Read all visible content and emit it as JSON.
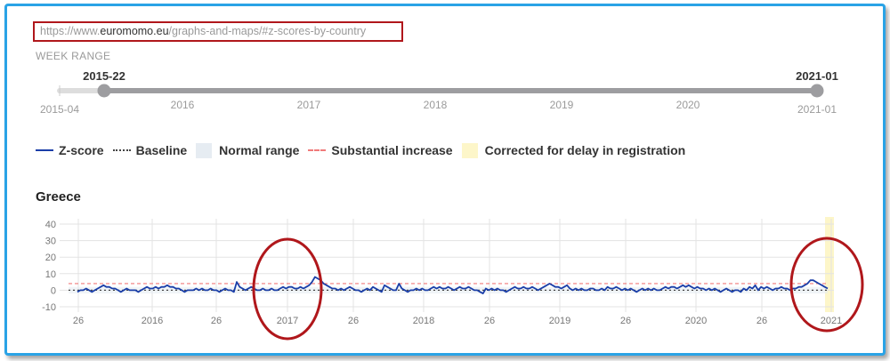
{
  "url": {
    "prefix": "https://www.",
    "domain": "euromomo.eu",
    "path": "/graphs-and-maps/#z-scores-by-country"
  },
  "week_range": {
    "label": "WEEK RANGE",
    "start_selected": "2015-22",
    "end_selected": "2021-01",
    "min_label": "2015-04",
    "max_label": "2021-01",
    "year_ticks": [
      "2016",
      "2017",
      "2018",
      "2019",
      "2020"
    ]
  },
  "legend": [
    {
      "label": "Z-score",
      "style": "solid",
      "color": "#1a3ea8"
    },
    {
      "label": "Baseline",
      "style": "dotted",
      "color": "#444444"
    },
    {
      "label": "Normal range",
      "style": "swatch",
      "color": "#e6ecf2"
    },
    {
      "label": "Substantial increase",
      "style": "dashed",
      "color": "#f07a7a"
    },
    {
      "label": "Corrected for delay in registration",
      "style": "swatch",
      "color": "#fdf6c9"
    }
  ],
  "colors": {
    "zscore": "#1a3ea8",
    "baseline": "#444444",
    "normal_range": "#e6ecf2",
    "substantial_increase": "#f07a7a",
    "correction": "#fdf6c9",
    "highlight": "#b0171b",
    "frame": "#2aa3e6"
  },
  "chart_data": {
    "type": "line",
    "title": "Greece",
    "x_unit": "ISO week (2015-22 to 2021-01)",
    "ylim": [
      -10,
      40
    ],
    "yticks": [
      "40",
      "30",
      "20",
      "10",
      "0",
      "-10"
    ],
    "xtick_labels": [
      "26",
      "2016",
      "26",
      "2017",
      "26",
      "2018",
      "26",
      "2019",
      "26",
      "2020",
      "26",
      "2021"
    ],
    "grid": true,
    "baseline": 0,
    "substantial_increase": 4,
    "normal_range": [
      -2,
      2
    ],
    "corrected_weeks_start": "2020-50",
    "series": [
      {
        "name": "Z-score",
        "x_start": "2015-22",
        "values": [
          -1,
          0,
          0,
          1,
          0,
          -1,
          0,
          1,
          2,
          3,
          2,
          2,
          1,
          1,
          0,
          -1,
          0,
          1,
          0,
          0,
          0,
          -1,
          0,
          1,
          2,
          1,
          1,
          2,
          1,
          2,
          2,
          3,
          2,
          2,
          1,
          1,
          0,
          -1,
          0,
          0,
          0,
          1,
          0,
          1,
          0,
          0,
          1,
          0,
          0,
          -1,
          0,
          1,
          0,
          0,
          -1,
          5,
          2,
          1,
          0,
          1,
          2,
          1,
          0,
          0,
          1,
          0,
          0,
          1,
          0,
          0,
          1,
          2,
          1,
          2,
          2,
          1,
          1,
          2,
          1,
          2,
          3,
          5,
          8,
          7,
          6,
          4,
          3,
          2,
          1,
          1,
          0,
          1,
          0,
          1,
          2,
          1,
          0,
          0,
          -1,
          0,
          1,
          0,
          2,
          1,
          0,
          -1,
          3,
          2,
          1,
          0,
          0,
          4,
          1,
          0,
          -1,
          0,
          0,
          1,
          0,
          1,
          0,
          0,
          1,
          2,
          1,
          2,
          1,
          1,
          2,
          1,
          0,
          1,
          2,
          1,
          1,
          2,
          1,
          0,
          0,
          -1,
          -2,
          1,
          0,
          1,
          0,
          1,
          0,
          0,
          -1,
          0,
          1,
          2,
          1,
          1,
          2,
          1,
          1,
          2,
          1,
          0,
          1,
          2,
          3,
          4,
          3,
          2,
          2,
          1,
          2,
          3,
          1,
          0,
          1,
          0,
          1,
          0,
          0,
          1,
          1,
          0,
          0,
          1,
          0,
          2,
          1,
          1,
          2,
          1,
          0,
          1,
          0,
          1,
          0,
          -1,
          0,
          1,
          0,
          1,
          0,
          1,
          0,
          0,
          1,
          2,
          1,
          2,
          2,
          1,
          2,
          3,
          2,
          3,
          2,
          1,
          2,
          1,
          1,
          0,
          1,
          0,
          1,
          0,
          -1,
          0,
          1,
          0,
          -1,
          0,
          0,
          -1,
          1,
          0,
          2,
          1,
          3,
          0,
          2,
          1,
          2,
          1,
          0,
          1,
          1,
          2,
          1,
          1,
          0,
          1,
          1,
          2,
          2,
          3,
          4,
          6,
          6,
          5,
          4,
          3,
          2,
          1
        ]
      }
    ]
  }
}
